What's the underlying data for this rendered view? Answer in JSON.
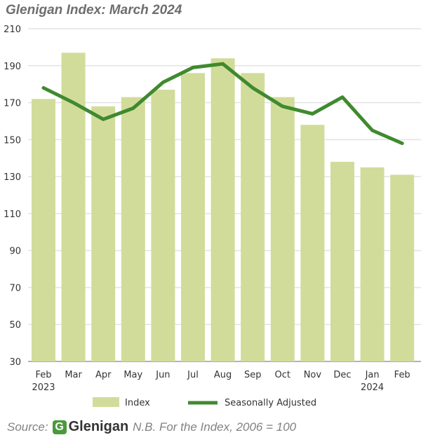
{
  "chart_data": {
    "type": "bar",
    "title": "Glenigan Index: March 2024",
    "categories": [
      "Feb",
      "Mar",
      "Apr",
      "May",
      "Jun",
      "Jul",
      "Aug",
      "Sep",
      "Oct",
      "Nov",
      "Dec",
      "Jan",
      "Feb"
    ],
    "year_labels": [
      "2023",
      "",
      "",
      "",
      "",
      "",
      "",
      "",
      "",
      "",
      "",
      "2024",
      ""
    ],
    "ylim": [
      30,
      210
    ],
    "yticks": [
      30,
      50,
      70,
      90,
      110,
      130,
      150,
      170,
      190,
      210
    ],
    "grid": true,
    "legend_position": "bottom",
    "series": [
      {
        "name": "Index",
        "type": "bar",
        "color": "#d2dc9a",
        "values": [
          172,
          197,
          168,
          173,
          177,
          186,
          194,
          186,
          173,
          158,
          138,
          135,
          131
        ]
      },
      {
        "name": "Seasonally Adjusted",
        "type": "line",
        "color": "#3f8a2e",
        "values": [
          178,
          170,
          161,
          167,
          181,
          189,
          191,
          178,
          168,
          164,
          173,
          155,
          148
        ]
      }
    ]
  },
  "footer": {
    "source_label": "Source:",
    "logo_text": "Glenigan",
    "logo_mark": "G",
    "note": "N.B. For the Index, 2006 = 100"
  }
}
